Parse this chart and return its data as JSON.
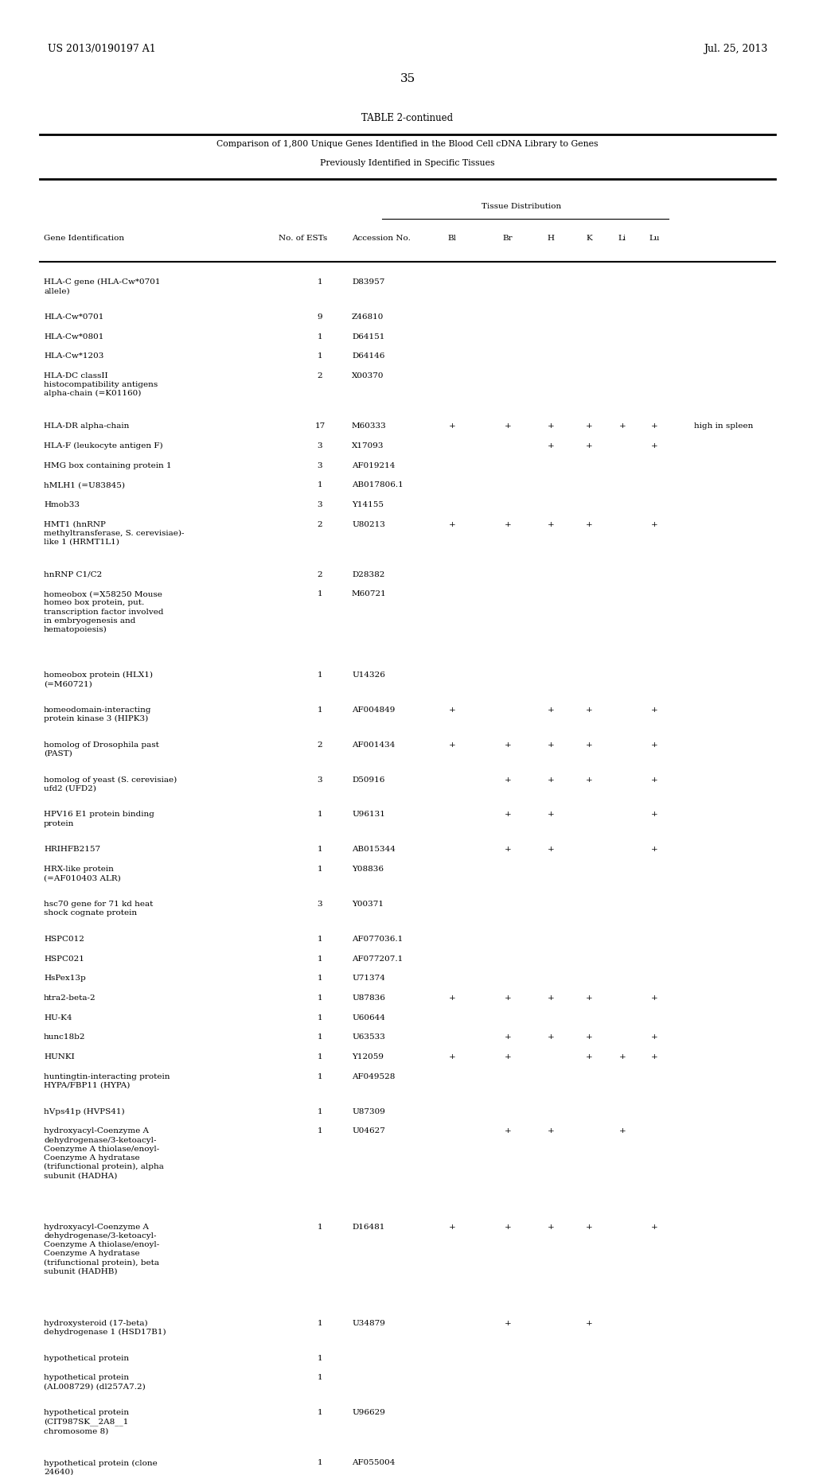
{
  "patent_left": "US 2013/0190197 A1",
  "patent_right": "Jul. 25, 2013",
  "page_number": "35",
  "table_title": "TABLE 2-continued",
  "table_subtitle1": "Comparison of 1,800 Unique Genes Identified in the Blood Cell cDNA Library to Genes",
  "table_subtitle2": "Previously Identified in Specific Tissues",
  "tissue_dist_label": "Tissue Distribution",
  "rows": [
    {
      "gene": "HLA-C gene (HLA-Cw*0701\nallele)",
      "ests": "1",
      "acc": "D83957",
      "Bl": "",
      "Br": "",
      "H": "",
      "K": "",
      "Li": "",
      "Lu": "",
      "note": ""
    },
    {
      "gene": "HLA-Cw*0701",
      "ests": "9",
      "acc": "Z46810",
      "Bl": "",
      "Br": "",
      "H": "",
      "K": "",
      "Li": "",
      "Lu": "",
      "note": ""
    },
    {
      "gene": "HLA-Cw*0801",
      "ests": "1",
      "acc": "D64151",
      "Bl": "",
      "Br": "",
      "H": "",
      "K": "",
      "Li": "",
      "Lu": "",
      "note": ""
    },
    {
      "gene": "HLA-Cw*1203",
      "ests": "1",
      "acc": "D64146",
      "Bl": "",
      "Br": "",
      "H": "",
      "K": "",
      "Li": "",
      "Lu": "",
      "note": ""
    },
    {
      "gene": "HLA-DC classII\nhistocompatibility antigens\nalpha-chain (=K01160)",
      "ests": "2",
      "acc": "X00370",
      "Bl": "",
      "Br": "",
      "H": "",
      "K": "",
      "Li": "",
      "Lu": "",
      "note": ""
    },
    {
      "gene": "HLA-DR alpha-chain",
      "ests": "17",
      "acc": "M60333",
      "Bl": "+",
      "Br": "+",
      "H": "+",
      "K": "+",
      "Li": "+",
      "Lu": "+",
      "note": "high in spleen"
    },
    {
      "gene": "HLA-F (leukocyte antigen F)",
      "ests": "3",
      "acc": "X17093",
      "Bl": "",
      "Br": "",
      "H": "+",
      "K": "+",
      "Li": "",
      "Lu": "+",
      "note": ""
    },
    {
      "gene": "HMG box containing protein 1",
      "ests": "3",
      "acc": "AF019214",
      "Bl": "",
      "Br": "",
      "H": "",
      "K": "",
      "Li": "",
      "Lu": "",
      "note": ""
    },
    {
      "gene": "hMLH1 (=U83845)",
      "ests": "1",
      "acc": "AB017806.1",
      "Bl": "",
      "Br": "",
      "H": "",
      "K": "",
      "Li": "",
      "Lu": "",
      "note": ""
    },
    {
      "gene": "Hmob33",
      "ests": "3",
      "acc": "Y14155",
      "Bl": "",
      "Br": "",
      "H": "",
      "K": "",
      "Li": "",
      "Lu": "",
      "note": ""
    },
    {
      "gene": "HMT1 (hnRNP\nmethyltransferase, S. cerevisiae)-\nlike 1 (HRMT1L1)",
      "ests": "2",
      "acc": "U80213",
      "Bl": "+",
      "Br": "+",
      "H": "+",
      "K": "+",
      "Li": "",
      "Lu": "+",
      "note": ""
    },
    {
      "gene": "hnRNP C1/C2",
      "ests": "2",
      "acc": "D28382",
      "Bl": "",
      "Br": "",
      "H": "",
      "K": "",
      "Li": "",
      "Lu": "",
      "note": ""
    },
    {
      "gene": "homeobox (=X58250 Mouse\nhomeo box protein, put.\ntranscription factor involved\nin embryogenesis and\nhematopoiesis)",
      "ests": "1",
      "acc": "M60721",
      "Bl": "",
      "Br": "",
      "H": "",
      "K": "",
      "Li": "",
      "Lu": "",
      "note": ""
    },
    {
      "gene": "homeobox protein (HLX1)\n(=M60721)",
      "ests": "1",
      "acc": "U14326",
      "Bl": "",
      "Br": "",
      "H": "",
      "K": "",
      "Li": "",
      "Lu": "",
      "note": ""
    },
    {
      "gene": "homeodomain-interacting\nprotein kinase 3 (HIPK3)",
      "ests": "1",
      "acc": "AF004849",
      "Bl": "+",
      "Br": "",
      "H": "+",
      "K": "+",
      "Li": "",
      "Lu": "+",
      "note": ""
    },
    {
      "gene": "homolog of Drosophila past\n(PAST)",
      "ests": "2",
      "acc": "AF001434",
      "Bl": "+",
      "Br": "+",
      "H": "+",
      "K": "+",
      "Li": "",
      "Lu": "+",
      "note": ""
    },
    {
      "gene": "homolog of yeast (S. cerevisiae)\nufd2 (UFD2)",
      "ests": "3",
      "acc": "D50916",
      "Bl": "",
      "Br": "+",
      "H": "+",
      "K": "+",
      "Li": "",
      "Lu": "+",
      "note": ""
    },
    {
      "gene": "HPV16 E1 protein binding\nprotein",
      "ests": "1",
      "acc": "U96131",
      "Bl": "",
      "Br": "+",
      "H": "+",
      "K": "",
      "Li": "",
      "Lu": "+",
      "note": ""
    },
    {
      "gene": "HRIHFB2157",
      "ests": "1",
      "acc": "AB015344",
      "Bl": "",
      "Br": "+",
      "H": "+",
      "K": "",
      "Li": "",
      "Lu": "+",
      "note": ""
    },
    {
      "gene": "HRX-like protein\n(=AF010403 ALR)",
      "ests": "1",
      "acc": "Y08836",
      "Bl": "",
      "Br": "",
      "H": "",
      "K": "",
      "Li": "",
      "Lu": "",
      "note": ""
    },
    {
      "gene": "hsc70 gene for 71 kd heat\nshock cognate protein",
      "ests": "3",
      "acc": "Y00371",
      "Bl": "",
      "Br": "",
      "H": "",
      "K": "",
      "Li": "",
      "Lu": "",
      "note": ""
    },
    {
      "gene": "HSPC012",
      "ests": "1",
      "acc": "AF077036.1",
      "Bl": "",
      "Br": "",
      "H": "",
      "K": "",
      "Li": "",
      "Lu": "",
      "note": ""
    },
    {
      "gene": "HSPC021",
      "ests": "1",
      "acc": "AF077207.1",
      "Bl": "",
      "Br": "",
      "H": "",
      "K": "",
      "Li": "",
      "Lu": "",
      "note": ""
    },
    {
      "gene": "HsPex13p",
      "ests": "1",
      "acc": "U71374",
      "Bl": "",
      "Br": "",
      "H": "",
      "K": "",
      "Li": "",
      "Lu": "",
      "note": ""
    },
    {
      "gene": "htra2-beta-2",
      "ests": "1",
      "acc": "U87836",
      "Bl": "+",
      "Br": "+",
      "H": "+",
      "K": "+",
      "Li": "",
      "Lu": "+",
      "note": ""
    },
    {
      "gene": "HU-K4",
      "ests": "1",
      "acc": "U60644",
      "Bl": "",
      "Br": "",
      "H": "",
      "K": "",
      "Li": "",
      "Lu": "",
      "note": ""
    },
    {
      "gene": "hunc18b2",
      "ests": "1",
      "acc": "U63533",
      "Bl": "",
      "Br": "+",
      "H": "+",
      "K": "+",
      "Li": "",
      "Lu": "+",
      "note": ""
    },
    {
      "gene": "HUNKI",
      "ests": "1",
      "acc": "Y12059",
      "Bl": "+",
      "Br": "+",
      "H": "",
      "K": "+",
      "Li": "+",
      "Lu": "+",
      "note": ""
    },
    {
      "gene": "huntingtin-interacting protein\nHYPA/FBP11 (HYPA)",
      "ests": "1",
      "acc": "AF049528",
      "Bl": "",
      "Br": "",
      "H": "",
      "K": "",
      "Li": "",
      "Lu": "",
      "note": ""
    },
    {
      "gene": "hVps41p (HVPS41)",
      "ests": "1",
      "acc": "U87309",
      "Bl": "",
      "Br": "",
      "H": "",
      "K": "",
      "Li": "",
      "Lu": "",
      "note": ""
    },
    {
      "gene": "hydroxyacyl-Coenzyme A\ndehydrogenase/3-ketoacyl-\nCoenzyme A thiolase/enoyl-\nCoenzyme A hydratase\n(trifunctional protein), alpha\nsubunit (HADHA)",
      "ests": "1",
      "acc": "U04627",
      "Bl": "",
      "Br": "+",
      "H": "+",
      "K": "",
      "Li": "+",
      "Lu": "",
      "note": ""
    },
    {
      "gene": "hydroxyacyl-Coenzyme A\ndehydrogenase/3-ketoacyl-\nCoenzyme A thiolase/enoyl-\nCoenzyme A hydratase\n(trifunctional protein), beta\nsubunit (HADHB)",
      "ests": "1",
      "acc": "D16481",
      "Bl": "+",
      "Br": "+",
      "H": "+",
      "K": "+",
      "Li": "",
      "Lu": "+",
      "note": ""
    },
    {
      "gene": "hydroxysteroid (17-beta)\ndehydrogenase 1 (HSD17B1)",
      "ests": "1",
      "acc": "U34879",
      "Bl": "",
      "Br": "+",
      "H": "",
      "K": "+",
      "Li": "",
      "Lu": "",
      "note": ""
    },
    {
      "gene": "hypothetical protein",
      "ests": "1",
      "acc": "",
      "Bl": "",
      "Br": "",
      "H": "",
      "K": "",
      "Li": "",
      "Lu": "",
      "note": ""
    },
    {
      "gene": "hypothetical protein\n(AL008729) (dl257A7.2)",
      "ests": "1",
      "acc": "",
      "Bl": "",
      "Br": "",
      "H": "",
      "K": "",
      "Li": "",
      "Lu": "",
      "note": ""
    },
    {
      "gene": "hypothetical protein\n(CIT987SK__2A8__1\nchromosome 8)",
      "ests": "1",
      "acc": "U96629",
      "Bl": "",
      "Br": "",
      "H": "",
      "K": "",
      "Li": "",
      "Lu": "",
      "note": ""
    },
    {
      "gene": "hypothetical protein (clone\n24640)",
      "ests": "1",
      "acc": "AF055004",
      "Bl": "",
      "Br": "",
      "H": "",
      "K": "",
      "Li": "",
      "Lu": "",
      "note": ""
    }
  ],
  "bg_color": "#ffffff",
  "text_color": "#000000",
  "font_size": 7.5,
  "header_font_size": 7.5
}
